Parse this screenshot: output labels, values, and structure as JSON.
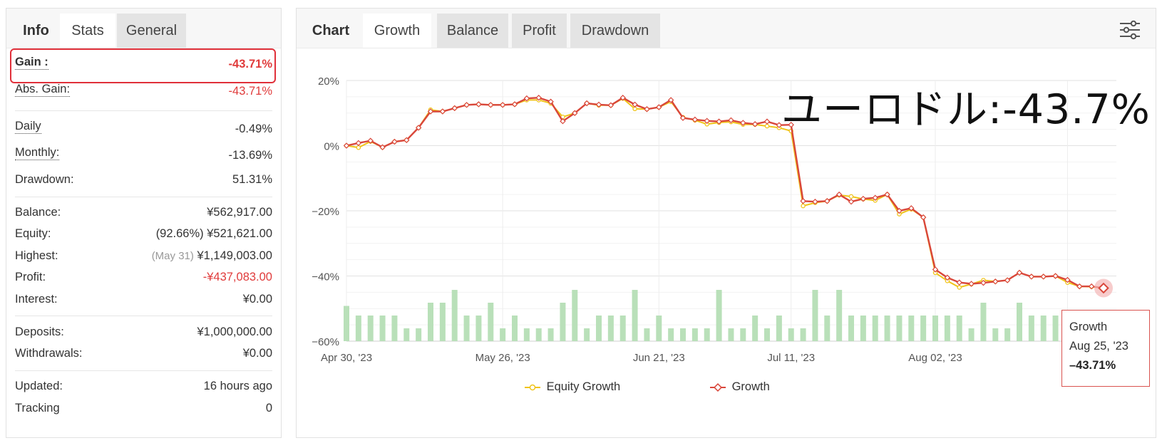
{
  "left": {
    "tabs": [
      {
        "label": "Info"
      },
      {
        "label": "Stats"
      },
      {
        "label": "General"
      }
    ],
    "gain": {
      "label": "Gain :",
      "value": "-43.71%"
    },
    "abs_gain": {
      "label": "Abs. Gain:",
      "value": "-43.71%"
    },
    "daily": {
      "label": "Daily",
      "value": "-0.49%"
    },
    "monthly": {
      "label": "Monthly:",
      "value": "-13.69%"
    },
    "drawdown": {
      "label": "Drawdown:",
      "value": "51.31%"
    },
    "balance": {
      "label": "Balance:",
      "value": "¥562,917.00"
    },
    "equity": {
      "label": "Equity:",
      "prefix": "(92.66%)",
      "value": "¥521,621.00"
    },
    "highest": {
      "label": "Highest:",
      "date": "(May 31)",
      "value": "¥1,149,003.00"
    },
    "profit": {
      "label": "Profit:",
      "value": "-¥437,083.00"
    },
    "interest": {
      "label": "Interest:",
      "value": "¥0.00"
    },
    "deposits": {
      "label": "Deposits:",
      "value": "¥1,000,000.00"
    },
    "withdrawals": {
      "label": "Withdrawals:",
      "value": "¥0.00"
    },
    "updated": {
      "label": "Updated:",
      "value": "16 hours ago"
    },
    "tracking": {
      "label": "Tracking",
      "value": "0"
    }
  },
  "right": {
    "tabs": [
      {
        "label": "Chart"
      },
      {
        "label": "Growth"
      },
      {
        "label": "Balance"
      },
      {
        "label": "Profit"
      },
      {
        "label": "Drawdown"
      }
    ],
    "filter_icon": "sliders-icon",
    "overlay_text": "ユーロドル:-43.7%",
    "tooltip": {
      "series": "Growth",
      "date": "Aug 25, '23",
      "value": "–43.71%"
    },
    "legend": [
      {
        "label": "Equity Growth"
      },
      {
        "label": "Growth"
      }
    ]
  },
  "colors": {
    "accent_red": "#e03b3b",
    "growth_line": "#d9463a",
    "equity_line": "#f0c419",
    "bars": "#b9e0b9",
    "grid": "#e8e8e8"
  },
  "chart_data": {
    "type": "line",
    "y_ticks": [
      "20%",
      "0%",
      "−20%",
      "−40%",
      "−60%"
    ],
    "x_ticks": [
      "Apr 30, '23",
      "May 26, '23",
      "Jun 21, '23",
      "Jul 11, '23",
      "Aug 02, '23"
    ],
    "ylim": [
      -60,
      20
    ],
    "x_count": 64,
    "series": [
      {
        "name": "Growth",
        "color": "#d9463a",
        "values": [
          0,
          0.8,
          1.5,
          -0.5,
          1.2,
          1.7,
          5.5,
          10.5,
          10.5,
          11.5,
          12.5,
          12.7,
          12.5,
          12.5,
          12.7,
          14.5,
          14.7,
          13.5,
          7.5,
          10,
          13,
          12.6,
          12.4,
          14.7,
          12.6,
          11.2,
          11.8,
          14,
          8.5,
          8,
          7.6,
          7.4,
          7.8,
          7,
          6.6,
          7.4,
          6.3,
          6.4,
          -17,
          -17.2,
          -17,
          -15,
          -17.2,
          -16.3,
          -16,
          -15,
          -20,
          -19.2,
          -22,
          -38,
          -40.5,
          -42,
          -42.4,
          -42.1,
          -41.7,
          -41.3,
          -39,
          -40.2,
          -40.2,
          -40,
          -41.2,
          -43.2,
          -43.2,
          -43.71
        ]
      },
      {
        "name": "Equity Growth",
        "color": "#f0c419",
        "values": [
          0,
          -0.6,
          1.3,
          -0.5,
          1.2,
          1.7,
          5.5,
          11,
          10.5,
          11.5,
          12.5,
          12.7,
          12.5,
          12.5,
          12.7,
          14,
          14,
          13,
          8.8,
          10,
          13,
          12.4,
          12.4,
          14.5,
          11.3,
          11.2,
          11.8,
          13.5,
          8.7,
          7.8,
          6.6,
          7.1,
          7.3,
          6.5,
          6.5,
          6,
          5.5,
          4.5,
          -18.5,
          -17.5,
          -17,
          -15.2,
          -15.6,
          -16.4,
          -16.8,
          -15,
          -21,
          -19.5,
          -22,
          -39,
          -41.5,
          -43.5,
          -42.5,
          -41.3,
          -41.7,
          -41.3,
          -39,
          -40.2,
          -40.2,
          -40,
          -42,
          -43.2,
          -43.3,
          -43.71
        ]
      }
    ],
    "bar_values": [
      11,
      8,
      8,
      8,
      8,
      4,
      4,
      12,
      12,
      16,
      8,
      8,
      12,
      4,
      8,
      4,
      4,
      4,
      12,
      16,
      4,
      8,
      8,
      8,
      16,
      4,
      8,
      4,
      4,
      4,
      4,
      16,
      4,
      4,
      8,
      4,
      8,
      4,
      4,
      16,
      8,
      16,
      8,
      8,
      8,
      8,
      8,
      8,
      8,
      8,
      8,
      8,
      4,
      12,
      4,
      4,
      12,
      8,
      8,
      8,
      8,
      8,
      4,
      4
    ],
    "tooltip_point": {
      "date": "Aug 25, '23",
      "value": -43.71
    }
  }
}
